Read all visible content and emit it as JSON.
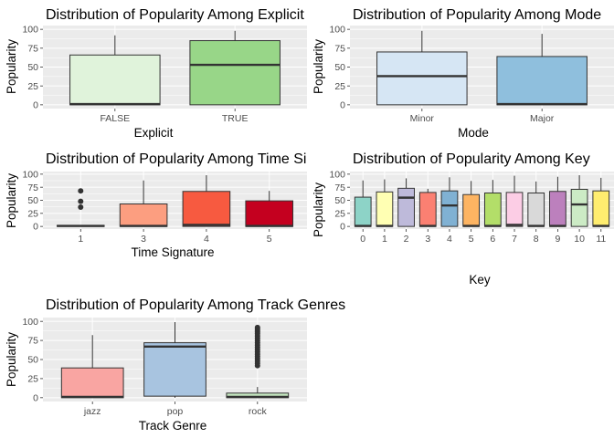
{
  "chart_data": [
    {
      "type": "box",
      "title": "Distribution of Popularity Among Explicit",
      "xlabel": "Explicit",
      "ylabel": "Popularity",
      "ylim": [
        0,
        100
      ],
      "yticks": [
        "0",
        "25",
        "50",
        "75",
        "100"
      ],
      "categories": [
        "FALSE",
        "TRUE"
      ],
      "boxes": [
        {
          "q1": 0,
          "median": 1,
          "q3": 66,
          "whisker_low": 0,
          "whisker_high": 92,
          "outliers": [],
          "color": "#e0f3db"
        },
        {
          "q1": 0,
          "median": 53,
          "q3": 85,
          "whisker_low": 0,
          "whisker_high": 98,
          "outliers": [],
          "color": "#98d688"
        }
      ]
    },
    {
      "type": "box",
      "title": "Distribution of Popularity Among Mode",
      "xlabel": "Mode",
      "ylabel": "Popularity",
      "ylim": [
        0,
        100
      ],
      "yticks": [
        "0",
        "25",
        "50",
        "75",
        "100"
      ],
      "categories": [
        "Minor",
        "Major"
      ],
      "boxes": [
        {
          "q1": 0,
          "median": 38,
          "q3": 70,
          "whisker_low": 0,
          "whisker_high": 98,
          "outliers": [],
          "color": "#d6e6f4"
        },
        {
          "q1": 0,
          "median": 1,
          "q3": 64,
          "whisker_low": 0,
          "whisker_high": 94,
          "outliers": [],
          "color": "#8fbfdd"
        }
      ]
    },
    {
      "type": "box",
      "title": "Distribution of Popularity Among Time Signature",
      "xlabel": "Time Signature",
      "ylabel": "Popularity",
      "ylim": [
        0,
        100
      ],
      "yticks": [
        "0",
        "25",
        "50",
        "75",
        "100"
      ],
      "categories": [
        "1",
        "3",
        "4",
        "5"
      ],
      "boxes": [
        {
          "q1": 0,
          "median": 1,
          "q3": 2,
          "whisker_low": 0,
          "whisker_high": 2,
          "outliers": [
            37,
            48,
            68
          ],
          "color": "#fee5d9"
        },
        {
          "q1": 0,
          "median": 1,
          "q3": 43,
          "whisker_low": 0,
          "whisker_high": 88,
          "outliers": [],
          "color": "#fc9e80"
        },
        {
          "q1": 0,
          "median": 3,
          "q3": 67,
          "whisker_low": 0,
          "whisker_high": 98,
          "outliers": [],
          "color": "#f75a40"
        },
        {
          "q1": 0,
          "median": 1,
          "q3": 49,
          "whisker_low": 0,
          "whisker_high": 68,
          "outliers": [],
          "color": "#c4001f"
        }
      ]
    },
    {
      "type": "box",
      "title": "Distribution of Popularity Among Key",
      "xlabel": "Key",
      "ylabel": "Popularity",
      "ylim": [
        0,
        100
      ],
      "yticks": [
        "0",
        "25",
        "50",
        "75",
        "100"
      ],
      "categories": [
        "0",
        "1",
        "2",
        "3",
        "4",
        "5",
        "6",
        "7",
        "8",
        "9",
        "10",
        "11"
      ],
      "boxes": [
        {
          "q1": 0,
          "median": 1,
          "q3": 56,
          "whisker_low": 0,
          "whisker_high": 88,
          "outliers": [],
          "color": "#8dd3c7"
        },
        {
          "q1": 0,
          "median": 1,
          "q3": 66,
          "whisker_low": 0,
          "whisker_high": 90,
          "outliers": [],
          "color": "#ffffb3"
        },
        {
          "q1": 0,
          "median": 55,
          "q3": 73,
          "whisker_low": 0,
          "whisker_high": 92,
          "outliers": [],
          "color": "#bebada"
        },
        {
          "q1": 0,
          "median": 1,
          "q3": 65,
          "whisker_low": 0,
          "whisker_high": 72,
          "outliers": [],
          "color": "#fb8072"
        },
        {
          "q1": 0,
          "median": 40,
          "q3": 68,
          "whisker_low": 0,
          "whisker_high": 94,
          "outliers": [],
          "color": "#80b1d3"
        },
        {
          "q1": 0,
          "median": 1,
          "q3": 61,
          "whisker_low": 0,
          "whisker_high": 87,
          "outliers": [],
          "color": "#fdb462"
        },
        {
          "q1": 0,
          "median": 1,
          "q3": 64,
          "whisker_low": 0,
          "whisker_high": 89,
          "outliers": [],
          "color": "#b3de69"
        },
        {
          "q1": 0,
          "median": 3,
          "q3": 65,
          "whisker_low": 0,
          "whisker_high": 97,
          "outliers": [],
          "color": "#fccde5"
        },
        {
          "q1": 0,
          "median": 1,
          "q3": 64,
          "whisker_low": 0,
          "whisker_high": 86,
          "outliers": [],
          "color": "#d9d9d9"
        },
        {
          "q1": 0,
          "median": 1,
          "q3": 67,
          "whisker_low": 0,
          "whisker_high": 95,
          "outliers": [],
          "color": "#bc80bd"
        },
        {
          "q1": 0,
          "median": 42,
          "q3": 71,
          "whisker_low": 0,
          "whisker_high": 98,
          "outliers": [],
          "color": "#ccebc5"
        },
        {
          "q1": 0,
          "median": 1,
          "q3": 68,
          "whisker_low": 0,
          "whisker_high": 93,
          "outliers": [],
          "color": "#ffed6f"
        }
      ]
    },
    {
      "type": "box",
      "title": "Distribution of Popularity Among Track Genres",
      "xlabel": "Track Genre",
      "ylabel": "Popularity",
      "ylim": [
        0,
        100
      ],
      "yticks": [
        "0",
        "25",
        "50",
        "75",
        "100"
      ],
      "categories": [
        "jazz",
        "pop",
        "rock"
      ],
      "boxes": [
        {
          "q1": 0,
          "median": 1,
          "q3": 39,
          "whisker_low": 0,
          "whisker_high": 82,
          "outliers": [],
          "color": "#f9a5a2"
        },
        {
          "q1": 2,
          "median": 67,
          "q3": 72,
          "whisker_low": 0,
          "whisker_high": 99,
          "outliers": [],
          "color": "#a8c4e0"
        },
        {
          "q1": 0,
          "median": 1,
          "q3": 6,
          "whisker_low": 0,
          "whisker_high": 14,
          "outliers": [
            42,
            45,
            48,
            51,
            54,
            57,
            60,
            63,
            66,
            69,
            72,
            75,
            78,
            81,
            84,
            86,
            88,
            90,
            92
          ],
          "color": "#c5e7c0"
        }
      ]
    }
  ]
}
